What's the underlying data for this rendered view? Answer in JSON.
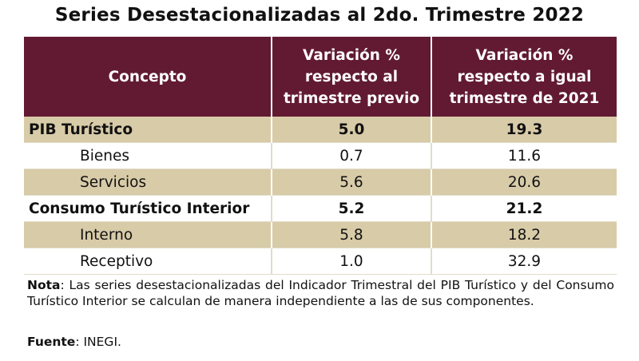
{
  "title": "Series Desestacionalizadas al 2do. Trimestre 2022",
  "chart_data": {
    "type": "table",
    "title": "Series Desestacionalizadas al 2do. Trimestre 2022",
    "columns": [
      "Concepto",
      "Variación % respecto al trimestre previo",
      "Variación % respecto a igual trimestre de 2021"
    ],
    "rows": [
      {
        "concept": "PIB Turístico",
        "prev": "5.0",
        "yoy": "19.3",
        "level": "main"
      },
      {
        "concept": "Bienes",
        "prev": "0.7",
        "yoy": "11.6",
        "level": "sub"
      },
      {
        "concept": "Servicios",
        "prev": "5.6",
        "yoy": "20.6",
        "level": "sub"
      },
      {
        "concept": "Consumo Turístico Interior",
        "prev": "5.2",
        "yoy": "21.2",
        "level": "main"
      },
      {
        "concept": "Interno",
        "prev": "5.8",
        "yoy": "18.2",
        "level": "sub"
      },
      {
        "concept": "Receptivo",
        "prev": "1.0",
        "yoy": "32.9",
        "level": "sub"
      }
    ]
  },
  "header": {
    "concept": "Concepto",
    "prev_line1": "Variación %",
    "prev_line2": "respecto al",
    "prev_line3": "trimestre previo",
    "yoy_line1": "Variación %",
    "yoy_line2": "respecto a igual",
    "yoy_line3": "trimestre de 2021"
  },
  "note": {
    "label": "Nota",
    "text": ": Las series desestacionalizadas del Indicador Trimestral del PIB Turístico y del Consumo Turístico Interior se calculan de manera independiente a las de sus componentes."
  },
  "source": {
    "label": "Fuente",
    "text": ": INEGI."
  },
  "colors": {
    "header_bg": "#621a33",
    "band_bg": "#d8cba8"
  }
}
